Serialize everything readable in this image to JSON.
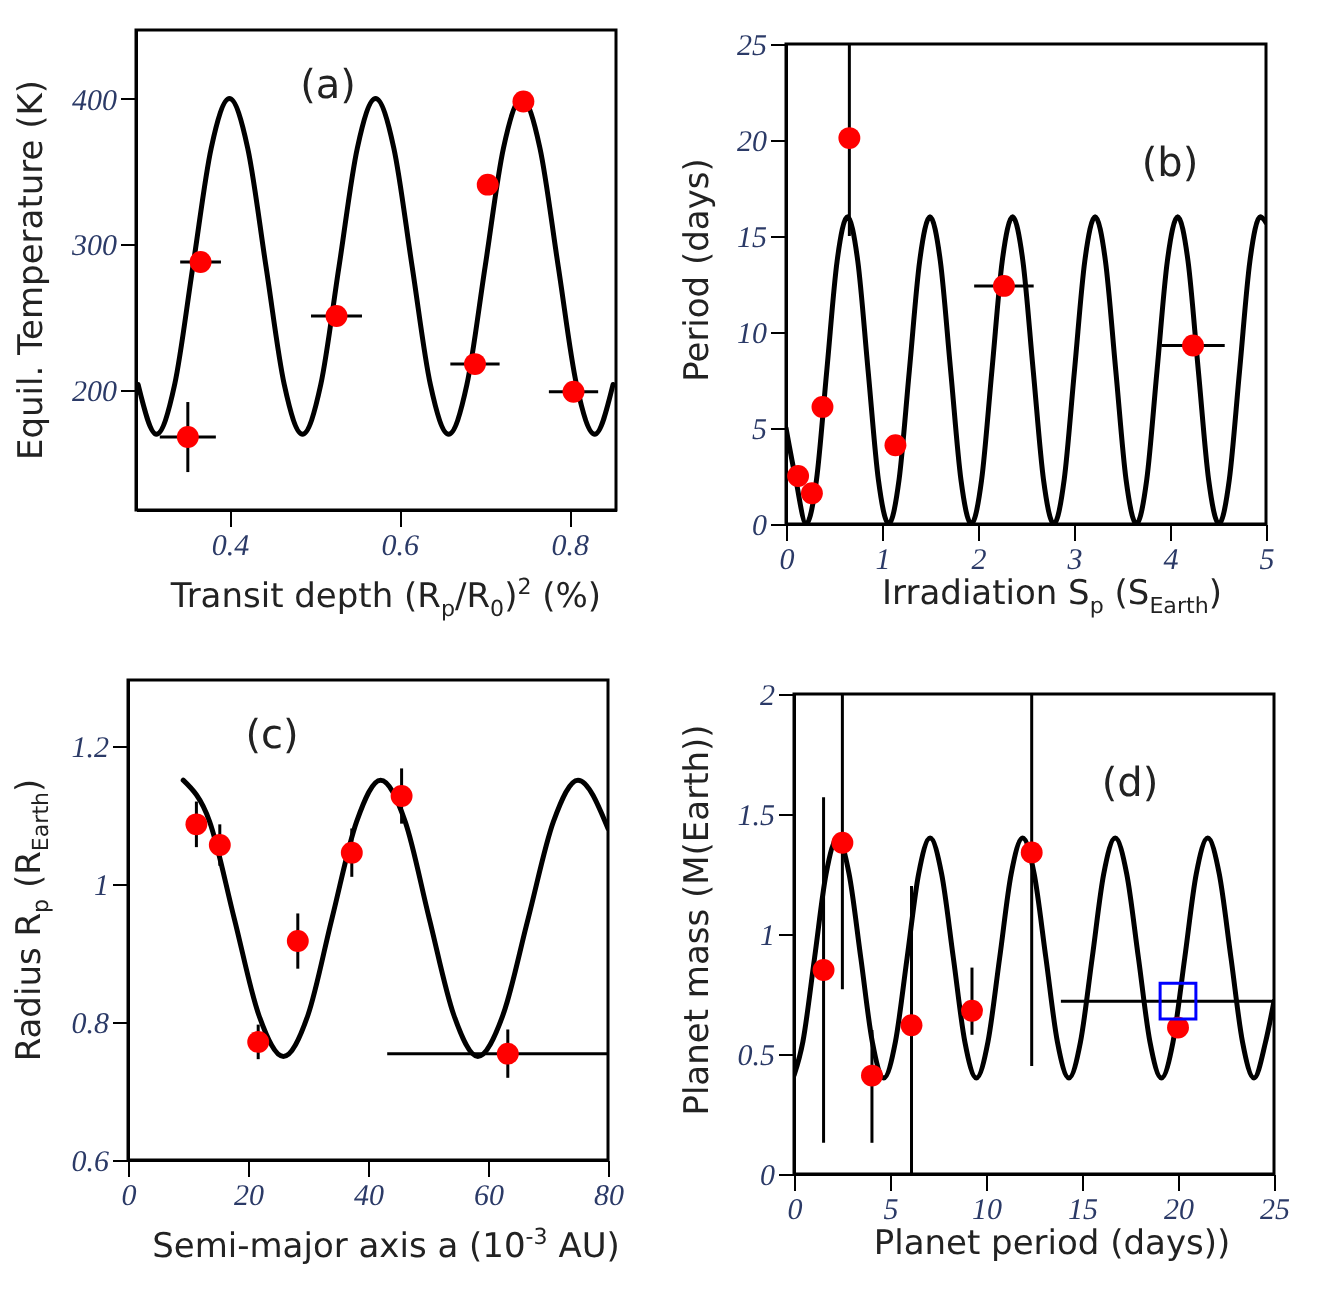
{
  "chart_data": [
    {
      "type": "scatter",
      "xlabel": "Transit depth (R$_{p}$/R$_{0}$)$^{2}$ (%)",
      "ylabel": "Equil. Temperature (K)",
      "annotations": [
        "(a)"
      ],
      "xlim": [
        0.29,
        0.855
      ],
      "ylim": [
        118,
        447
      ],
      "xticks": [
        0.4,
        0.6,
        0.8
      ],
      "yticks": [
        200,
        300,
        400
      ],
      "series": [
        {
          "type": "line",
          "color": "#000000",
          "marker": "none",
          "x": [
            0.2925,
            0.314,
            0.3355,
            0.357,
            0.3785,
            0.4,
            0.4215,
            0.443,
            0.4645,
            0.486,
            0.5075,
            0.529,
            0.5505,
            0.572,
            0.5935,
            0.615,
            0.6365,
            0.658,
            0.6795,
            0.701,
            0.7225,
            0.744,
            0.7655,
            0.787,
            0.8085,
            0.83,
            0.8515
          ],
          "values": [
            204,
            170,
            204,
            285,
            366,
            400,
            366,
            285,
            204,
            170,
            204,
            285,
            366,
            400,
            366,
            285,
            204,
            170,
            204,
            285,
            366,
            400,
            366,
            285,
            204,
            170,
            204
          ]
        },
        {
          "color": "#ff0000",
          "marker": "circle",
          "x": [
            0.351,
            0.366,
            0.526,
            0.689,
            0.704,
            0.746,
            0.805
          ],
          "values": [
            168,
            288,
            251,
            218,
            341,
            398,
            199
          ],
          "errors": [
            24,
            null,
            null,
            null,
            null,
            null,
            null
          ],
          "xerrors": [
            0.033,
            0.024,
            0.03,
            0.029,
            null,
            null,
            0.029
          ]
        }
      ]
    },
    {
      "type": "scatter",
      "xlabel": "Irradiation S$_{p}$ (S$_{Earth}$)",
      "ylabel": "Period (days)",
      "annotations": [
        "(b)"
      ],
      "xlim": [
        0,
        5
      ],
      "ylim": [
        0,
        25
      ],
      "xticks": [
        0,
        1,
        2,
        3,
        4,
        5
      ],
      "yticks": [
        0,
        5,
        10,
        15,
        20,
        25
      ],
      "series": [
        {
          "type": "line",
          "color": "#000000",
          "marker": "none",
          "x": [
            0,
            0.1025,
            0.21,
            0.3175,
            0.425,
            0.5325,
            0.64,
            0.7475,
            0.855,
            0.9625,
            1.07,
            1.1775,
            1.285,
            1.3925,
            1.5,
            1.6075,
            1.715,
            1.8225,
            1.93,
            2.0375,
            2.145,
            2.2525,
            2.36,
            2.4675,
            2.575,
            2.6825,
            2.79,
            2.8975,
            3.005,
            3.1125,
            3.22,
            3.3275,
            3.435,
            3.5425,
            3.65,
            3.7575,
            3.865,
            3.9725,
            4.08,
            4.1875,
            4.295,
            4.4025,
            4.51,
            4.6175,
            4.725,
            4.8325,
            4.94,
            5
          ],
          "values": [
            5,
            2.3,
            0,
            2.3,
            8,
            13.7,
            16,
            13.7,
            8,
            2.3,
            0,
            2.3,
            8,
            13.7,
            16,
            13.7,
            8,
            2.3,
            0,
            2.3,
            8,
            13.7,
            16,
            13.7,
            8,
            2.3,
            0,
            2.3,
            8,
            13.7,
            16,
            13.7,
            8,
            2.3,
            0,
            2.3,
            8,
            13.7,
            16,
            13.7,
            8,
            2.3,
            0,
            2.3,
            8,
            13.7,
            16,
            15.7
          ]
        },
        {
          "color": "#ff0000",
          "marker": "circle",
          "x": [
            0.126,
            0.27,
            0.38,
            0.66,
            1.14,
            2.27,
            4.24
          ],
          "values": [
            2.5,
            1.6,
            6.1,
            20.1,
            4.1,
            12.4,
            9.3
          ],
          "errors": [
            null,
            null,
            null,
            [
              15,
              25
            ],
            null,
            null,
            null
          ],
          "xerrors": [
            null,
            null,
            null,
            null,
            null,
            0.31,
            0.33
          ]
        }
      ]
    },
    {
      "type": "scatter",
      "xlabel": "Semi-major axis a (10$^{-3}$ AU)",
      "ylabel": "Radius R$_{p}$ (R$_{Earth}$)",
      "annotations": [
        "(c)"
      ],
      "xlim": [
        0,
        80
      ],
      "ylim": [
        0.6,
        1.295
      ],
      "xticks": [
        0,
        20,
        40,
        60,
        80
      ],
      "yticks": [
        0.6,
        0.8,
        1,
        1.2
      ],
      "series": [
        {
          "type": "line",
          "color": "#000000",
          "marker": "none",
          "x": [
            9.2,
            13.6,
            17.7,
            21.8,
            25.9,
            30,
            34,
            38.1,
            42.1,
            46.2,
            50.2,
            54.3,
            58.3,
            62.5,
            66.7,
            70.9,
            75,
            80
          ],
          "values": [
            1.15,
            1.09,
            0.95,
            0.81,
            0.75,
            0.81,
            0.95,
            1.09,
            1.15,
            1.09,
            0.95,
            0.81,
            0.75,
            0.81,
            0.95,
            1.09,
            1.15,
            1.08
          ]
        },
        {
          "color": "#ff0000",
          "marker": "circle",
          "x": [
            11.4,
            15.3,
            21.7,
            28.3,
            37.3,
            45.6,
            63.3
          ],
          "values": [
            1.086,
            1.056,
            0.771,
            0.917,
            1.045,
            1.127,
            0.754
          ],
          "errors": [
            0.033,
            0.03,
            0.025,
            0.04,
            0.035,
            0.04,
            0.035
          ],
          "xerrors": [
            null,
            null,
            null,
            null,
            null,
            null,
            [
              43.2,
              80
            ]
          ]
        }
      ]
    },
    {
      "type": "scatter",
      "xlabel": "Planet period (days))",
      "ylabel": "Planet mass (M(Earth))",
      "annotations": [
        "(d)"
      ],
      "xlim": [
        0,
        25
      ],
      "ylim": [
        0,
        2
      ],
      "xticks": [
        0,
        5,
        10,
        15,
        20,
        25
      ],
      "yticks": [
        0,
        0.5,
        1,
        1.5,
        2
      ],
      "series": [
        {
          "type": "line",
          "color": "#000000",
          "marker": "none",
          "x": [
            0,
            0.46,
            1.07,
            1.67,
            2.27,
            2.87,
            3.48,
            4.08,
            4.68,
            5.28,
            5.89,
            6.49,
            7.09,
            7.69,
            8.3,
            8.9,
            9.5,
            10.1,
            10.71,
            11.31,
            11.91,
            12.51,
            13.12,
            13.72,
            14.32,
            14.92,
            15.53,
            16.13,
            16.73,
            17.33,
            17.94,
            18.54,
            19.14,
            19.74,
            20.35,
            20.95,
            21.55,
            22.15,
            22.76,
            23.36,
            23.96,
            24.56,
            25
          ],
          "values": [
            0.41,
            0.55,
            0.9,
            1.25,
            1.4,
            1.25,
            0.9,
            0.55,
            0.4,
            0.55,
            0.9,
            1.25,
            1.4,
            1.25,
            0.9,
            0.55,
            0.4,
            0.55,
            0.9,
            1.25,
            1.4,
            1.25,
            0.9,
            0.55,
            0.4,
            0.55,
            0.9,
            1.25,
            1.4,
            1.25,
            0.9,
            0.55,
            0.4,
            0.55,
            0.9,
            1.25,
            1.4,
            1.25,
            0.9,
            0.55,
            0.4,
            0.55,
            0.72
          ]
        },
        {
          "color": "#ff0000",
          "marker": "circle",
          "x": [
            1.54,
            2.52,
            4.06,
            6.12,
            9.27,
            12.38,
            20
          ],
          "values": [
            0.85,
            1.38,
            0.41,
            0.62,
            0.68,
            1.34,
            0.61
          ],
          "errors": [
            [
              0.13,
              1.57
            ],
            [
              0.77,
              2
            ],
            [
              0.13,
              0.6
            ],
            [
              0,
              1.2
            ],
            [
              0.58,
              0.86
            ],
            [
              0.45,
              2
            ],
            null
          ]
        },
        {
          "color": "#0000ff",
          "marker": "square",
          "x": [
            20
          ],
          "values": [
            0.72
          ],
          "xerrors": [
            [
              13.9,
              25
            ]
          ]
        }
      ]
    }
  ]
}
